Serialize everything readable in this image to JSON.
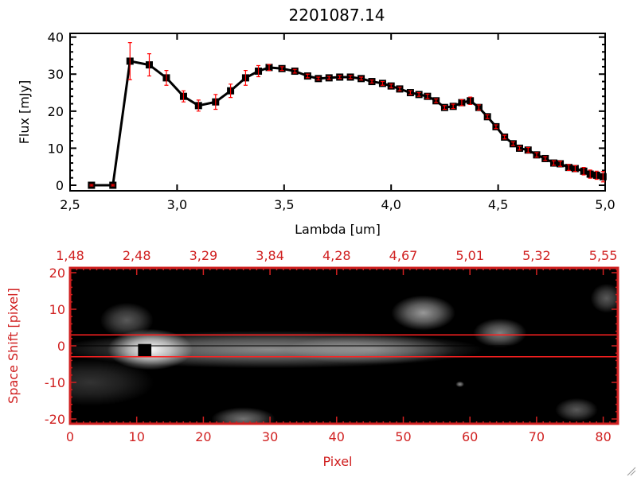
{
  "chart_data": [
    {
      "type": "line",
      "title": "2201087.14",
      "xlabel": "Lambda [um]",
      "ylabel": "Flux [mJy]",
      "xlim": [
        2.5,
        5.0
      ],
      "ylim": [
        -1.5,
        41
      ],
      "xticks": [
        2.5,
        3.0,
        3.5,
        4.0,
        4.5,
        5.0
      ],
      "xtick_labels": [
        "2,5",
        "3,0",
        "3,5",
        "4,0",
        "4,5",
        "5,0"
      ],
      "yticks": [
        0,
        10,
        20,
        30,
        40
      ],
      "ytick_labels": [
        "0",
        "10",
        "20",
        "30",
        "40"
      ],
      "line_color": "#000000",
      "errorbar_color": "#ff0000",
      "x": [
        2.6,
        2.7,
        2.78,
        2.87,
        2.95,
        3.03,
        3.1,
        3.18,
        3.25,
        3.32,
        3.38,
        3.43,
        3.49,
        3.55,
        3.61,
        3.66,
        3.71,
        3.76,
        3.81,
        3.86,
        3.91,
        3.96,
        4.0,
        4.04,
        4.09,
        4.13,
        4.17,
        4.21,
        4.25,
        4.29,
        4.33,
        4.37,
        4.41,
        4.45,
        4.49,
        4.53,
        4.57,
        4.6,
        4.64,
        4.68,
        4.72,
        4.76,
        4.79,
        4.83,
        4.86,
        4.9,
        4.93,
        4.96,
        4.99
      ],
      "y": [
        0,
        0,
        33.5,
        32.5,
        29,
        24,
        21.5,
        22.5,
        25.5,
        29,
        30.8,
        31.8,
        31.5,
        30.8,
        29.5,
        28.8,
        29,
        29.2,
        29.2,
        28.8,
        28,
        27.5,
        26.8,
        26,
        25,
        24.5,
        24,
        22.8,
        21,
        21.3,
        22.3,
        22.8,
        21,
        18.5,
        15.8,
        13,
        11.2,
        10,
        9.5,
        8.2,
        7.2,
        6,
        5.8,
        4.8,
        4.5,
        3.8,
        3,
        2.7,
        2.3
      ],
      "yerr": [
        0.2,
        0.2,
        5,
        3,
        2,
        1.5,
        1.5,
        2,
        1.8,
        2,
        1.5,
        0.8,
        0.5,
        0.5,
        0.5,
        0.4,
        0.4,
        0.4,
        0.4,
        0.4,
        0.4,
        0.5,
        0.5,
        0.5,
        0.5,
        0.5,
        0.6,
        0.5,
        0.5,
        0.6,
        0.8,
        1,
        0.7,
        0.5,
        0.5,
        0.5,
        0.5,
        0.5,
        0.7,
        0.6,
        0.5,
        0.6,
        0.7,
        0.8,
        0.8,
        1,
        1.1,
        1.1,
        1.4
      ]
    },
    {
      "type": "heatmap",
      "xlabel": "Pixel",
      "ylabel": "Space Shift [pixel]",
      "xlim": [
        0,
        82.2
      ],
      "ylim": [
        -21.3,
        21.3
      ],
      "xticks": [
        0,
        10,
        20,
        30,
        40,
        50,
        60,
        70,
        80
      ],
      "xtick_labels": [
        "0",
        "10",
        "20",
        "30",
        "40",
        "50",
        "60",
        "70",
        "80"
      ],
      "yticks": [
        -20,
        -10,
        0,
        10,
        20
      ],
      "ytick_labels": [
        "-20",
        "-10",
        "0",
        "10",
        "20"
      ],
      "top_tick_labels": [
        "1,48",
        "2,48",
        "3,29",
        "3,84",
        "4,28",
        "4,67",
        "5,01",
        "5,32",
        "5,55"
      ],
      "axis_color": "#d02020",
      "extraction_window": [
        -3,
        3
      ],
      "center_line": 0,
      "features": [
        {
          "x": 30,
          "y": -1,
          "sx": 20,
          "sy": 3.2,
          "v": 0.55
        },
        {
          "x": 12,
          "y": -1,
          "sx": 4,
          "sy": 3.5,
          "v": 1.0
        },
        {
          "x": 45,
          "y": -1,
          "sx": 8,
          "sy": 2.5,
          "v": 0.35
        },
        {
          "x": 8.5,
          "y": 7,
          "sx": 2.5,
          "sy": 3,
          "v": 0.35
        },
        {
          "x": 53,
          "y": 9,
          "sx": 3,
          "sy": 3,
          "v": 0.6
        },
        {
          "x": 64.5,
          "y": 3.5,
          "sx": 2.5,
          "sy": 2.5,
          "v": 0.5
        },
        {
          "x": 26,
          "y": -20,
          "sx": 3,
          "sy": 2,
          "v": 0.45
        },
        {
          "x": 76,
          "y": -17.5,
          "sx": 2,
          "sy": 2,
          "v": 0.35
        },
        {
          "x": 80.5,
          "y": 13,
          "sx": 1.5,
          "sy": 2.5,
          "v": 0.35
        },
        {
          "x": 3,
          "y": -10,
          "sx": 6,
          "sy": 4,
          "v": 0.2
        },
        {
          "x": 58.5,
          "y": -10.5,
          "sx": 0.4,
          "sy": 0.5,
          "v": 0.55
        }
      ]
    }
  ]
}
